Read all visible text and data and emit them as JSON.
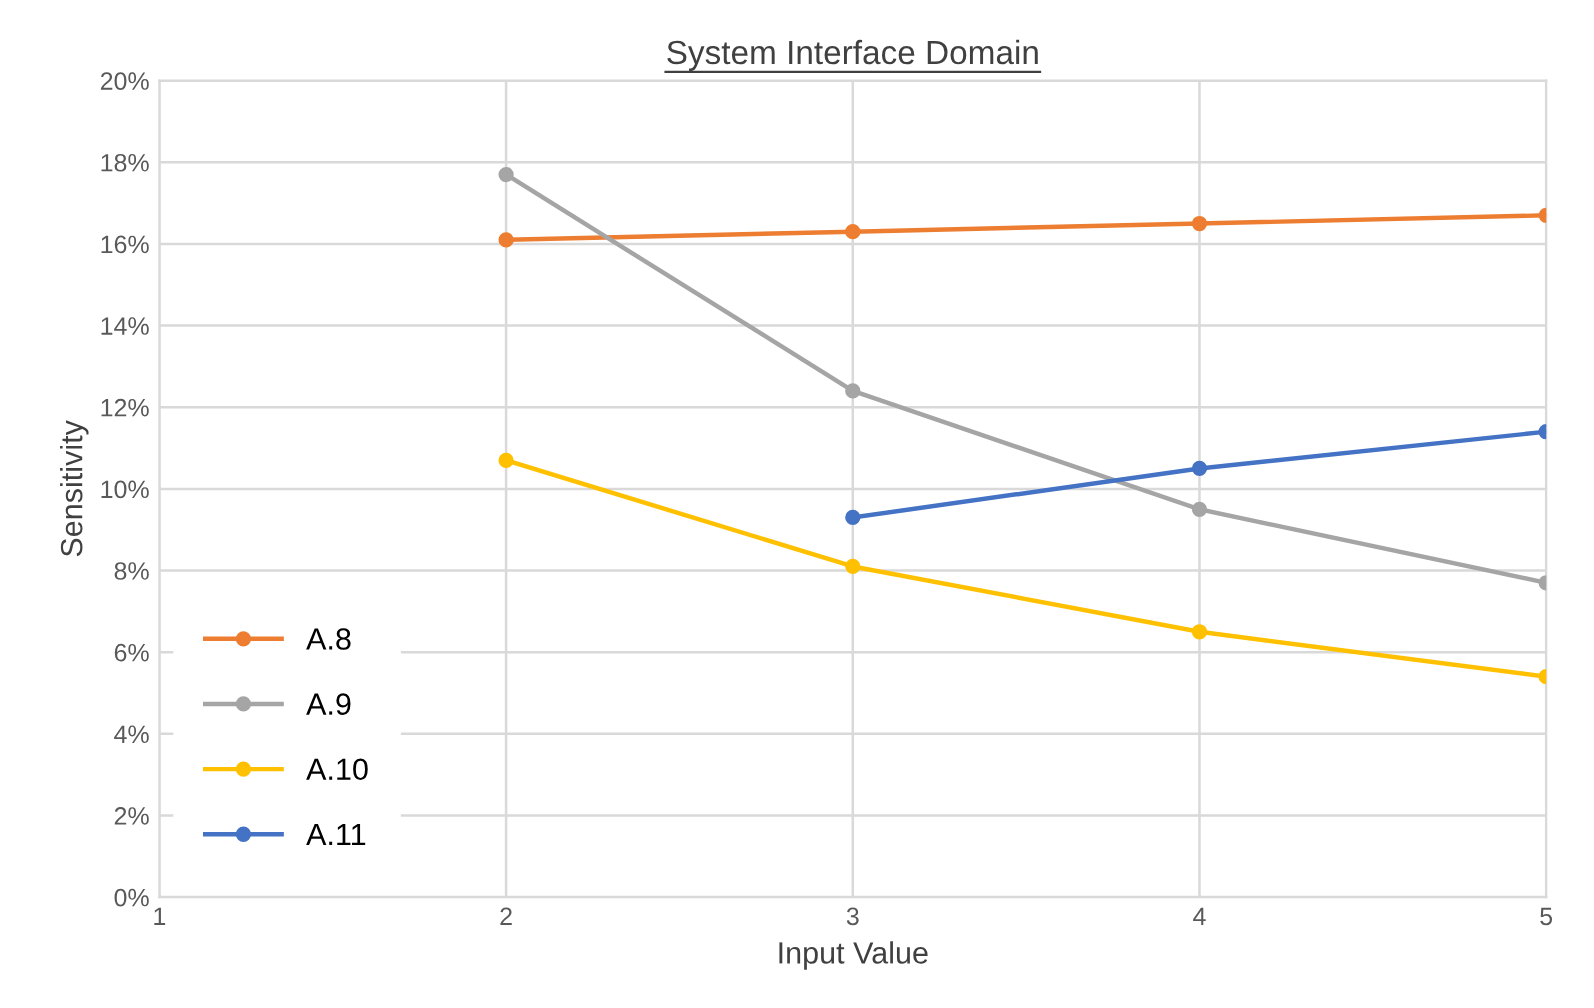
{
  "chart_data": {
    "type": "line",
    "title": "System Interface Domain",
    "xlabel": "Input Value",
    "ylabel": "Sensitivity",
    "xlim": [
      1,
      5
    ],
    "xticks": [
      1,
      2,
      3,
      4,
      5
    ],
    "ylim": [
      0,
      20
    ],
    "yticks": [
      {
        "value": 0,
        "label": "0%"
      },
      {
        "value": 2,
        "label": "2%"
      },
      {
        "value": 4,
        "label": "4%"
      },
      {
        "value": 6,
        "label": "6%"
      },
      {
        "value": 8,
        "label": "8%"
      },
      {
        "value": 10,
        "label": "10%"
      },
      {
        "value": 12,
        "label": "12%"
      },
      {
        "value": 14,
        "label": "14%"
      },
      {
        "value": 16,
        "label": "16%"
      },
      {
        "value": 18,
        "label": "18%"
      },
      {
        "value": 20,
        "label": "20%"
      }
    ],
    "grid": true,
    "legend": "bottom left",
    "marker": "circle",
    "line_style": "solid",
    "series": [
      {
        "name": "A.8",
        "color": "#ed7d31",
        "x": [
          2,
          3,
          4,
          5
        ],
        "values": [
          16.1,
          16.3,
          16.5,
          16.7
        ]
      },
      {
        "name": "A.9",
        "color": "#a5a5a5",
        "x": [
          2,
          3,
          4,
          5
        ],
        "values": [
          17.7,
          12.4,
          9.5,
          7.7
        ]
      },
      {
        "name": "A.10",
        "color": "#ffc000",
        "x": [
          2,
          3,
          4,
          5
        ],
        "values": [
          10.7,
          8.1,
          6.5,
          5.4
        ]
      },
      {
        "name": "A.11",
        "color": "#4472c4",
        "x": [
          3,
          4,
          5
        ],
        "values": [
          9.3,
          10.5,
          11.4
        ]
      }
    ]
  }
}
